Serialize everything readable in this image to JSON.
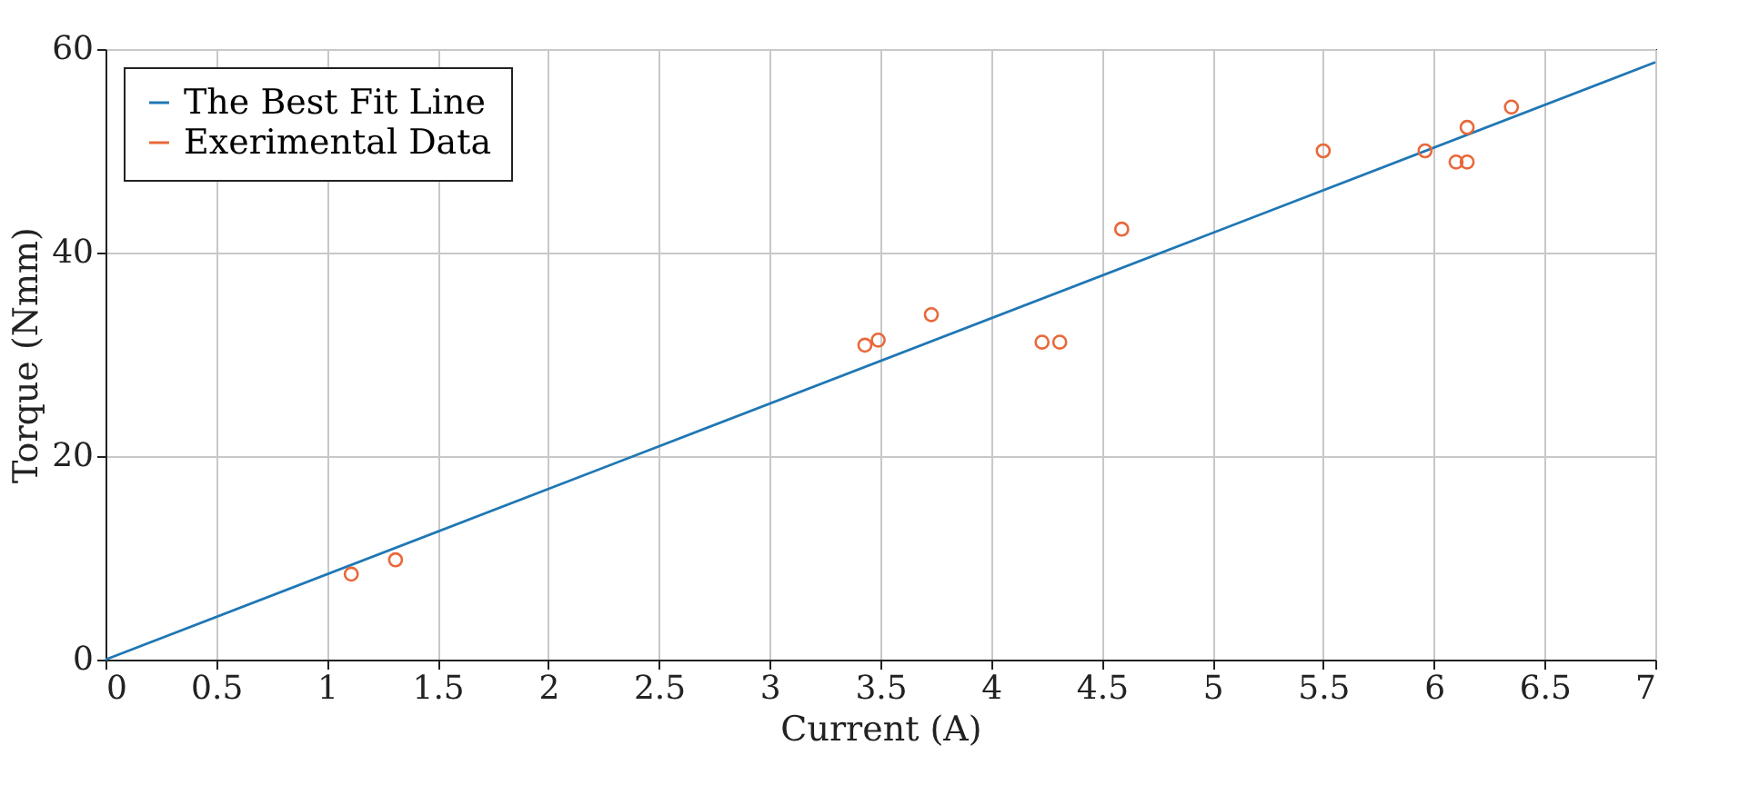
{
  "chart_data": {
    "type": "scatter",
    "xlabel": "Current (A)",
    "ylabel": "Torque (Nmm)",
    "xlim": [
      0,
      7
    ],
    "ylim": [
      0,
      60
    ],
    "xticks": [
      0,
      0.5,
      1,
      1.5,
      2,
      2.5,
      3,
      3.5,
      4,
      4.5,
      5,
      5.5,
      6,
      6.5,
      7
    ],
    "yticks": [
      0,
      20,
      40,
      60
    ],
    "grid": true,
    "legend": "top left",
    "marker": "circle",
    "series": [
      {
        "name": "The Best Fit Line",
        "type": "line",
        "color": "#1f77b4",
        "marker": "none",
        "x": [
          0,
          7
        ],
        "values": [
          0,
          58.7
        ]
      },
      {
        "name": "Exerimental Data",
        "color": "#e8683a",
        "x": [
          1.11,
          1.31,
          3.43,
          3.49,
          3.73,
          4.23,
          4.31,
          4.59,
          5.5,
          5.96,
          6.1,
          6.15,
          6.15,
          6.35
        ],
        "values": [
          8.4,
          9.8,
          30.9,
          31.4,
          33.9,
          31.2,
          31.2,
          42.3,
          50,
          50,
          48.9,
          48.9,
          52.3,
          54.3
        ]
      }
    ]
  }
}
